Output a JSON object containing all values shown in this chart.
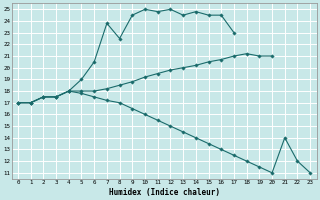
{
  "xlabel": "Humidex (Indice chaleur)",
  "bg_color": "#c8e8e8",
  "line_color": "#1a6b6b",
  "grid_color": "#ffffff",
  "xlim": [
    -0.5,
    23.5
  ],
  "ylim": [
    10.5,
    25.5
  ],
  "xticks": [
    0,
    1,
    2,
    3,
    4,
    5,
    6,
    7,
    8,
    9,
    10,
    11,
    12,
    13,
    14,
    15,
    16,
    17,
    18,
    19,
    20,
    21,
    22,
    23
  ],
  "yticks": [
    11,
    12,
    13,
    14,
    15,
    16,
    17,
    18,
    19,
    20,
    21,
    22,
    23,
    24,
    25
  ],
  "line1_x": [
    0,
    1,
    2,
    3,
    4,
    5,
    6,
    7,
    8,
    9,
    10,
    11,
    12,
    13,
    14,
    15,
    16,
    17
  ],
  "line1_y": [
    17,
    17,
    17.5,
    17.5,
    18,
    19.0,
    20.5,
    23.8,
    22.5,
    24.5,
    25.0,
    24.8,
    25.0,
    24.5,
    24.8,
    24.5,
    24.5,
    23.0
  ],
  "line2_x": [
    0,
    1,
    2,
    3,
    4,
    5,
    6,
    7,
    8,
    9,
    10,
    11,
    12,
    13,
    14,
    15,
    16,
    17,
    18,
    19,
    20
  ],
  "line2_y": [
    17,
    17,
    17.5,
    17.5,
    18,
    18.0,
    18.0,
    18.2,
    18.5,
    18.8,
    19.2,
    19.5,
    19.8,
    20.0,
    20.2,
    20.5,
    20.7,
    21.0,
    21.2,
    21.0,
    21.0
  ],
  "line3_x": [
    0,
    1,
    2,
    3,
    4,
    5,
    6,
    7,
    8,
    9,
    10,
    11,
    12,
    13,
    14,
    15,
    16,
    17,
    18,
    19,
    20,
    21,
    22,
    23
  ],
  "line3_y": [
    17,
    17,
    17.5,
    17.5,
    18,
    17.8,
    17.5,
    17.2,
    17.0,
    16.5,
    16.0,
    15.5,
    15.0,
    14.5,
    14.0,
    13.5,
    13.0,
    12.5,
    12.0,
    11.5,
    11.0,
    14.0,
    12.0,
    11.0
  ]
}
